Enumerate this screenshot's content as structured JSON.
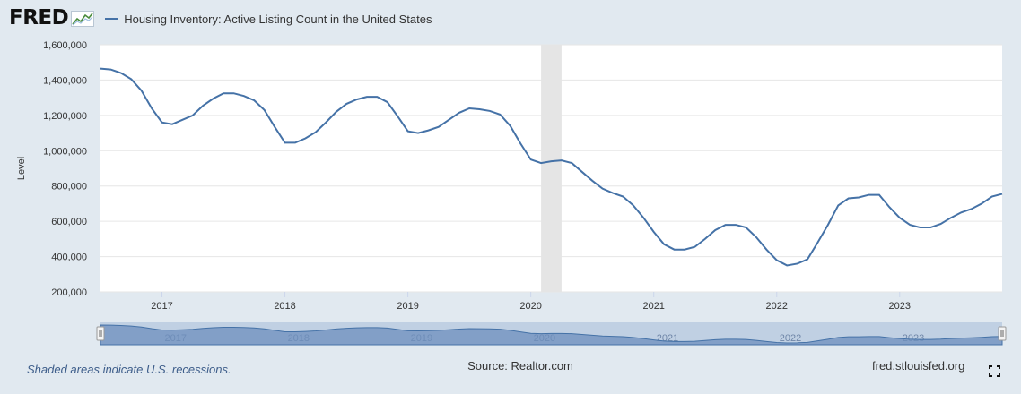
{
  "header": {
    "logo": "FRED",
    "logo_icon": "fred-graph-icon"
  },
  "chart_data": {
    "type": "line",
    "title": "Housing Inventory: Active Listing Count in the United States",
    "ylabel": "Level",
    "xlabel": "",
    "ylim": [
      200000,
      1600000
    ],
    "y_ticks": [
      "200,000",
      "400,000",
      "600,000",
      "800,000",
      "1,000,000",
      "1,200,000",
      "1,400,000",
      "1,600,000"
    ],
    "x_ticks": [
      "2017",
      "2018",
      "2019",
      "2020",
      "2021",
      "2022",
      "2023"
    ],
    "xlim": [
      "2016-07-01",
      "2023-11-01"
    ],
    "grid": true,
    "recession_shading": [
      {
        "start": "2020-02-01",
        "end": "2020-04-01"
      }
    ],
    "series": [
      {
        "name": "Housing Inventory: Active Listing Count in the United States",
        "color": "#4572a7",
        "x": [
          "2016-07",
          "2016-08",
          "2016-09",
          "2016-10",
          "2016-11",
          "2016-12",
          "2017-01",
          "2017-02",
          "2017-03",
          "2017-04",
          "2017-05",
          "2017-06",
          "2017-07",
          "2017-08",
          "2017-09",
          "2017-10",
          "2017-11",
          "2017-12",
          "2018-01",
          "2018-02",
          "2018-03",
          "2018-04",
          "2018-05",
          "2018-06",
          "2018-07",
          "2018-08",
          "2018-09",
          "2018-10",
          "2018-11",
          "2018-12",
          "2019-01",
          "2019-02",
          "2019-03",
          "2019-04",
          "2019-05",
          "2019-06",
          "2019-07",
          "2019-08",
          "2019-09",
          "2019-10",
          "2019-11",
          "2019-12",
          "2020-01",
          "2020-02",
          "2020-03",
          "2020-04",
          "2020-05",
          "2020-06",
          "2020-07",
          "2020-08",
          "2020-09",
          "2020-10",
          "2020-11",
          "2020-12",
          "2021-01",
          "2021-02",
          "2021-03",
          "2021-04",
          "2021-05",
          "2021-06",
          "2021-07",
          "2021-08",
          "2021-09",
          "2021-10",
          "2021-11",
          "2021-12",
          "2022-01",
          "2022-02",
          "2022-03",
          "2022-04",
          "2022-05",
          "2022-06",
          "2022-07",
          "2022-08",
          "2022-09",
          "2022-10",
          "2022-11",
          "2022-12",
          "2023-01",
          "2023-02",
          "2023-03",
          "2023-04",
          "2023-05",
          "2023-06",
          "2023-07",
          "2023-08",
          "2023-09",
          "2023-10",
          "2023-11"
        ],
        "values": [
          1465000,
          1460000,
          1440000,
          1405000,
          1340000,
          1240000,
          1160000,
          1150000,
          1175000,
          1200000,
          1255000,
          1295000,
          1325000,
          1325000,
          1310000,
          1285000,
          1230000,
          1135000,
          1045000,
          1045000,
          1070000,
          1105000,
          1160000,
          1220000,
          1265000,
          1290000,
          1305000,
          1305000,
          1275000,
          1195000,
          1110000,
          1100000,
          1115000,
          1135000,
          1175000,
          1215000,
          1240000,
          1235000,
          1225000,
          1205000,
          1140000,
          1040000,
          950000,
          930000,
          940000,
          945000,
          930000,
          880000,
          830000,
          785000,
          760000,
          740000,
          690000,
          620000,
          540000,
          470000,
          440000,
          440000,
          455000,
          500000,
          550000,
          580000,
          580000,
          565000,
          510000,
          440000,
          380000,
          350000,
          360000,
          385000,
          480000,
          580000,
          690000,
          730000,
          735000,
          750000,
          750000,
          680000,
          620000,
          580000,
          565000,
          565000,
          585000,
          620000,
          650000,
          670000,
          700000,
          740000,
          755000
        ]
      }
    ]
  },
  "navigator": {
    "labels": [
      "2017",
      "2018",
      "2019",
      "2020",
      "2021",
      "2022",
      "2023"
    ]
  },
  "footer": {
    "note": "Shaded areas indicate U.S. recessions.",
    "source": "Source: Realtor.com",
    "site": "fred.stlouisfed.org",
    "fullscreen_icon": "fullscreen-icon"
  }
}
